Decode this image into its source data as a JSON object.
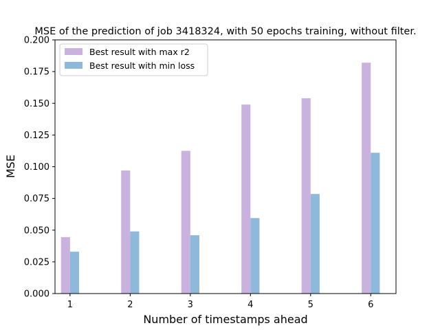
{
  "chart_data": {
    "type": "bar",
    "title": "MSE of the prediction of job 3418324, with 50 epochs training, without filter.",
    "xlabel": "Number of timestamps ahead",
    "ylabel": "MSE",
    "categories": [
      "1",
      "2",
      "3",
      "4",
      "5",
      "6"
    ],
    "x": [
      1,
      2,
      3,
      4,
      5,
      6
    ],
    "ylim": [
      0,
      0.2
    ],
    "yticks": [
      0.0,
      0.025,
      0.05,
      0.075,
      0.1,
      0.125,
      0.15,
      0.175,
      0.2
    ],
    "ytick_labels": [
      "0.000",
      "0.025",
      "0.050",
      "0.075",
      "0.100",
      "0.125",
      "0.150",
      "0.175",
      "0.200"
    ],
    "xlim": [
      0.75,
      6.42
    ],
    "grid": false,
    "legend_position": "upper-left",
    "series": [
      {
        "name": "Best result with max r2",
        "color": "#c9b2de",
        "values": [
          0.0445,
          0.097,
          0.1125,
          0.149,
          0.154,
          0.182
        ]
      },
      {
        "name": "Best result with min loss",
        "color": "#8eb9da",
        "values": [
          0.033,
          0.049,
          0.046,
          0.0595,
          0.0785,
          0.111
        ]
      }
    ]
  }
}
